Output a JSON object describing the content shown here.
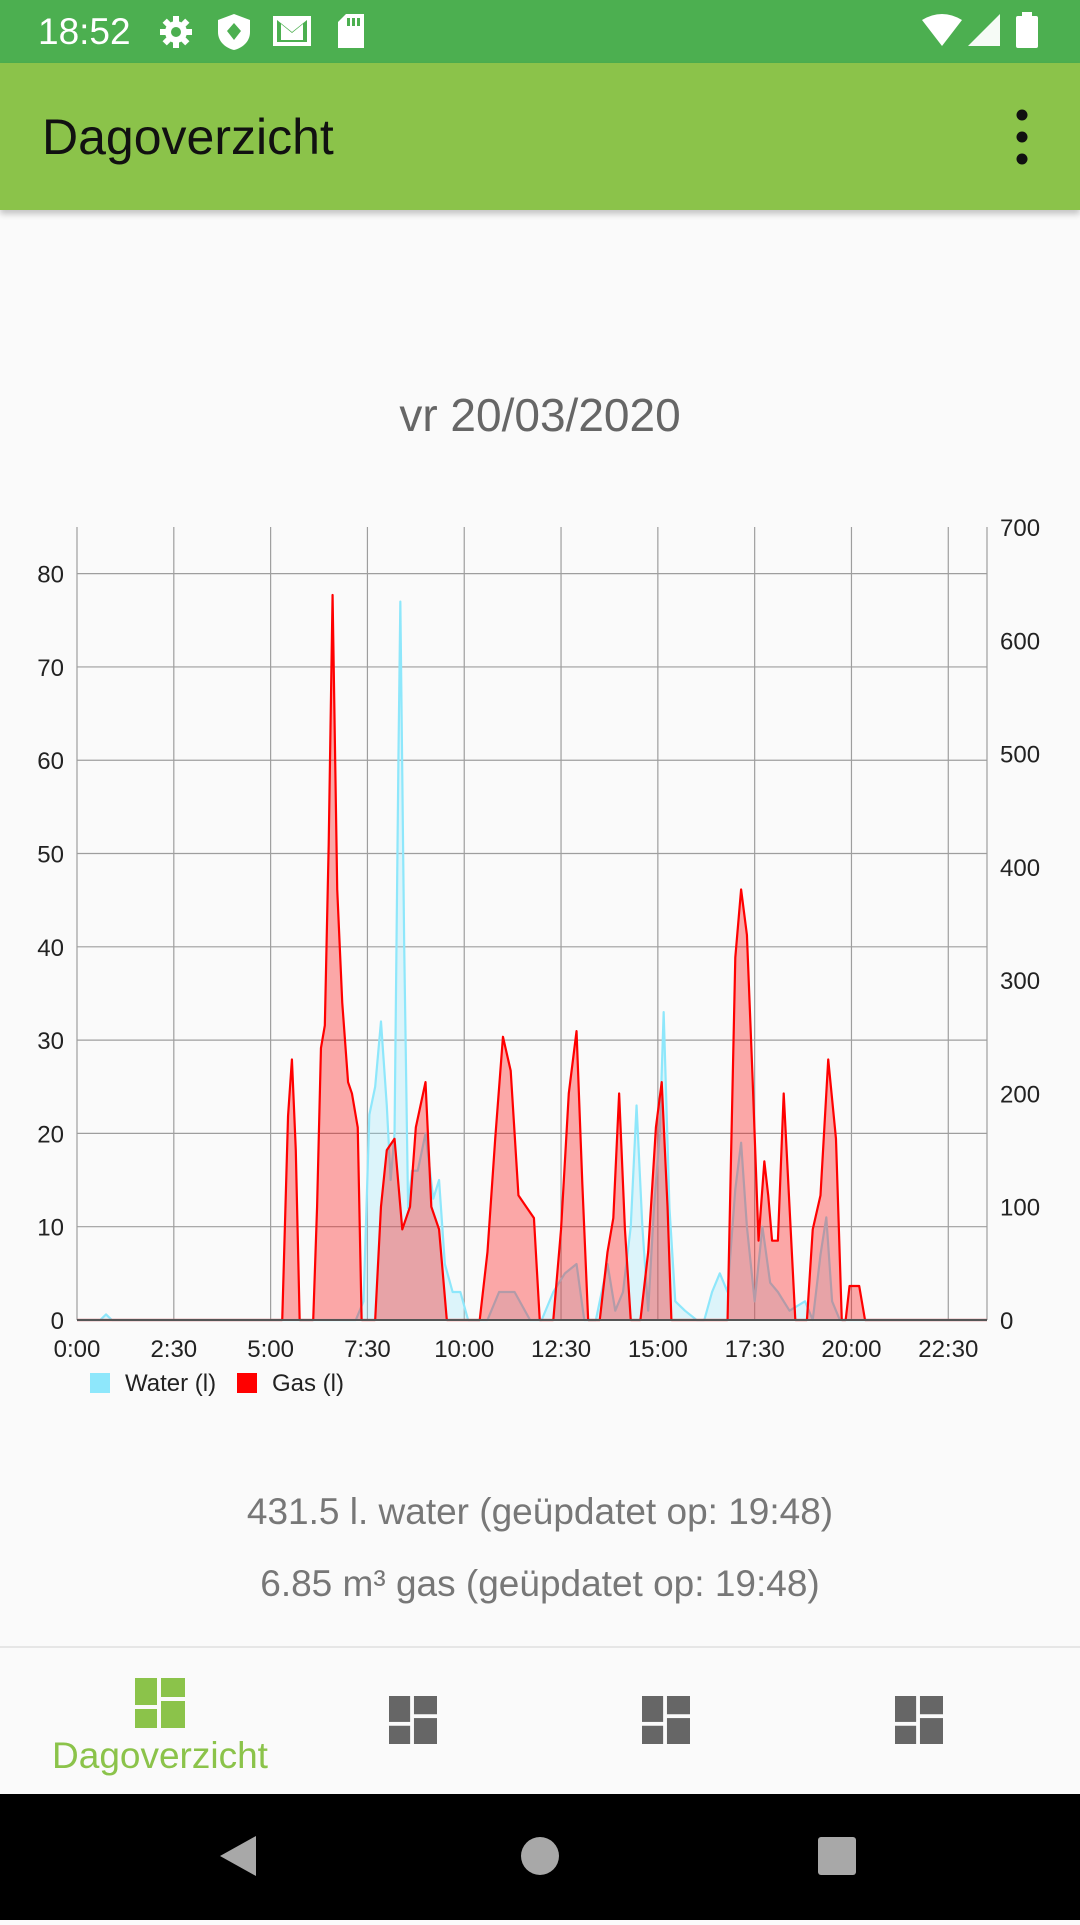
{
  "status_bar": {
    "time": "18:52",
    "left_icons": [
      "gear-icon",
      "shield-icon",
      "gmail-icon",
      "sd-card-icon"
    ],
    "right_icons": [
      "wifi-icon",
      "signal-icon",
      "battery-icon"
    ]
  },
  "app_bar": {
    "title": "Dagoverzicht",
    "menu_icon": "more-vert-icon"
  },
  "date": "vr 20/03/2020",
  "colors": {
    "water": "#8ee7fb",
    "gas": "#ff0000",
    "accent": "#8bc34a",
    "statusbar": "#4caf50"
  },
  "chart_data": {
    "type": "area",
    "x_unit": "hours",
    "x_ticks": [
      "0:00",
      "2:30",
      "5:00",
      "7:30",
      "10:00",
      "12:30",
      "15:00",
      "17:30",
      "20:00",
      "22:30"
    ],
    "xlim": [
      0,
      23.5
    ],
    "y_left_ticks": [
      "0",
      "10",
      "20",
      "30",
      "40",
      "50",
      "60",
      "70",
      "80"
    ],
    "ylim_left": [
      0,
      85
    ],
    "y_right_ticks": [
      "0",
      "100",
      "200",
      "300",
      "400",
      "500",
      "600",
      "700"
    ],
    "ylim_right": [
      0,
      700
    ],
    "grid": true,
    "legend_position": "bottom-left",
    "series": [
      {
        "name": "Water (l)",
        "axis": "left",
        "points": [
          [
            0,
            0
          ],
          [
            0.6,
            0
          ],
          [
            0.75,
            0.6
          ],
          [
            0.9,
            0
          ],
          [
            7.2,
            0
          ],
          [
            7.4,
            2
          ],
          [
            7.55,
            22
          ],
          [
            7.7,
            25
          ],
          [
            7.85,
            32
          ],
          [
            8.0,
            23
          ],
          [
            8.1,
            15
          ],
          [
            8.2,
            20
          ],
          [
            8.3,
            60
          ],
          [
            8.35,
            77
          ],
          [
            8.45,
            40
          ],
          [
            8.55,
            12
          ],
          [
            8.65,
            16
          ],
          [
            8.8,
            16
          ],
          [
            9.0,
            20
          ],
          [
            9.2,
            13
          ],
          [
            9.35,
            15
          ],
          [
            9.5,
            6
          ],
          [
            9.7,
            3
          ],
          [
            9.9,
            3
          ],
          [
            10.1,
            0
          ],
          [
            10.3,
            0
          ],
          [
            10.6,
            0
          ],
          [
            10.9,
            3
          ],
          [
            11.3,
            3
          ],
          [
            11.7,
            0
          ],
          [
            12.0,
            0
          ],
          [
            12.3,
            3
          ],
          [
            12.6,
            5
          ],
          [
            12.9,
            6
          ],
          [
            13.1,
            0
          ],
          [
            13.4,
            0
          ],
          [
            13.7,
            6
          ],
          [
            13.9,
            1
          ],
          [
            14.1,
            3
          ],
          [
            14.3,
            10
          ],
          [
            14.45,
            23
          ],
          [
            14.6,
            10
          ],
          [
            14.75,
            1
          ],
          [
            14.9,
            12
          ],
          [
            15.05,
            20
          ],
          [
            15.15,
            33
          ],
          [
            15.3,
            12
          ],
          [
            15.45,
            2
          ],
          [
            15.7,
            1
          ],
          [
            16.0,
            0
          ],
          [
            16.2,
            0
          ],
          [
            16.4,
            3
          ],
          [
            16.6,
            5
          ],
          [
            16.8,
            3
          ],
          [
            17.0,
            14
          ],
          [
            17.15,
            19
          ],
          [
            17.3,
            10
          ],
          [
            17.5,
            2
          ],
          [
            17.7,
            10
          ],
          [
            17.9,
            4
          ],
          [
            18.1,
            3
          ],
          [
            18.4,
            1
          ],
          [
            18.8,
            2
          ],
          [
            19.0,
            0
          ],
          [
            19.2,
            7
          ],
          [
            19.35,
            11
          ],
          [
            19.5,
            2
          ],
          [
            19.7,
            0
          ],
          [
            23.5,
            0
          ]
        ]
      },
      {
        "name": "Gas (l)",
        "axis": "right",
        "points": [
          [
            0,
            0
          ],
          [
            5.3,
            0
          ],
          [
            5.45,
            180
          ],
          [
            5.55,
            230
          ],
          [
            5.65,
            150
          ],
          [
            5.75,
            0
          ],
          [
            6.1,
            0
          ],
          [
            6.2,
            100
          ],
          [
            6.3,
            240
          ],
          [
            6.4,
            260
          ],
          [
            6.5,
            420
          ],
          [
            6.6,
            640
          ],
          [
            6.72,
            380
          ],
          [
            6.85,
            280
          ],
          [
            7.0,
            210
          ],
          [
            7.1,
            200
          ],
          [
            7.25,
            170
          ],
          [
            7.35,
            0
          ],
          [
            7.7,
            0
          ],
          [
            7.85,
            100
          ],
          [
            8.0,
            150
          ],
          [
            8.2,
            160
          ],
          [
            8.4,
            80
          ],
          [
            8.6,
            100
          ],
          [
            8.75,
            170
          ],
          [
            9.0,
            210
          ],
          [
            9.15,
            100
          ],
          [
            9.35,
            80
          ],
          [
            9.55,
            0
          ],
          [
            10.4,
            0
          ],
          [
            10.6,
            60
          ],
          [
            10.8,
            160
          ],
          [
            11.0,
            250
          ],
          [
            11.2,
            220
          ],
          [
            11.4,
            110
          ],
          [
            11.6,
            100
          ],
          [
            11.8,
            90
          ],
          [
            11.95,
            0
          ],
          [
            12.3,
            0
          ],
          [
            12.5,
            80
          ],
          [
            12.7,
            200
          ],
          [
            12.9,
            255
          ],
          [
            13.05,
            120
          ],
          [
            13.2,
            0
          ],
          [
            13.5,
            0
          ],
          [
            13.7,
            60
          ],
          [
            13.85,
            90
          ],
          [
            14.0,
            200
          ],
          [
            14.15,
            80
          ],
          [
            14.3,
            0
          ],
          [
            14.55,
            0
          ],
          [
            14.75,
            60
          ],
          [
            14.95,
            170
          ],
          [
            15.1,
            210
          ],
          [
            15.25,
            100
          ],
          [
            15.35,
            0
          ],
          [
            16.8,
            0
          ],
          [
            17.0,
            320
          ],
          [
            17.15,
            380
          ],
          [
            17.3,
            340
          ],
          [
            17.45,
            210
          ],
          [
            17.6,
            70
          ],
          [
            17.75,
            140
          ],
          [
            17.85,
            110
          ],
          [
            17.95,
            70
          ],
          [
            18.1,
            70
          ],
          [
            18.25,
            200
          ],
          [
            18.4,
            100
          ],
          [
            18.55,
            0
          ],
          [
            18.85,
            0
          ],
          [
            19.0,
            80
          ],
          [
            19.2,
            110
          ],
          [
            19.4,
            230
          ],
          [
            19.6,
            160
          ],
          [
            19.75,
            0
          ],
          [
            19.85,
            0
          ],
          [
            19.95,
            30
          ],
          [
            20.2,
            30
          ],
          [
            20.35,
            0
          ],
          [
            23.5,
            0
          ]
        ]
      }
    ]
  },
  "summary": {
    "water": "431.5 l. water (geüpdatet op: 19:48)",
    "gas": "6.85 m³ gas (geüpdatet op: 19:48)"
  },
  "bottom_nav": [
    {
      "label": "Dagoverzicht",
      "active": true,
      "icon": "dashboard-icon"
    },
    {
      "label": "",
      "active": false,
      "icon": "dashboard-icon"
    },
    {
      "label": "",
      "active": false,
      "icon": "dashboard-icon"
    },
    {
      "label": "",
      "active": false,
      "icon": "dashboard-icon"
    }
  ],
  "system_nav": [
    "back-icon",
    "home-icon",
    "recents-icon"
  ]
}
